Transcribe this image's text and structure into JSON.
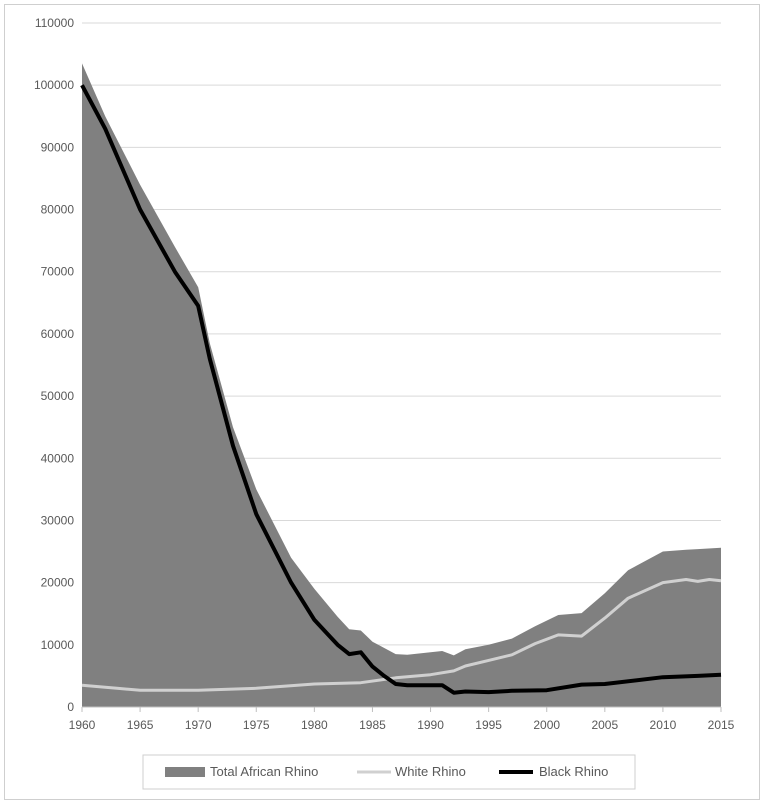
{
  "chart_data": {
    "type": "area",
    "title": "",
    "xlabel": "",
    "ylabel": "",
    "xlim": [
      1960,
      2015
    ],
    "ylim": [
      0,
      110000
    ],
    "x_ticks": [
      1960,
      1965,
      1970,
      1975,
      1980,
      1985,
      1990,
      1995,
      2000,
      2005,
      2010,
      2015
    ],
    "y_ticks": [
      0,
      10000,
      20000,
      30000,
      40000,
      50000,
      60000,
      70000,
      80000,
      90000,
      100000,
      110000
    ],
    "grid": "horizontal",
    "legend_position": "bottom",
    "series": [
      {
        "name": "Total African Rhino",
        "style": "area",
        "color": "#808080",
        "x": [
          1960,
          1962,
          1965,
          1968,
          1970,
          1971,
          1973,
          1975,
          1978,
          1980,
          1982,
          1983,
          1984,
          1985,
          1987,
          1988,
          1990,
          1991,
          1992,
          1993,
          1995,
          1997,
          1999,
          2001,
          2003,
          2005,
          2007,
          2010,
          2012,
          2013,
          2015
        ],
        "values": [
          103500,
          95000,
          84000,
          74000,
          67500,
          58500,
          45000,
          35000,
          24000,
          19000,
          14500,
          12500,
          12300,
          10500,
          8500,
          8400,
          8800,
          9000,
          8300,
          9300,
          10000,
          11000,
          13000,
          14800,
          15100,
          18300,
          22000,
          25000,
          25300,
          25400,
          25600
        ]
      },
      {
        "name": "White Rhino",
        "style": "line",
        "color": "#d0d0d0",
        "x": [
          1960,
          1963,
          1965,
          1970,
          1975,
          1980,
          1984,
          1987,
          1990,
          1992,
          1993,
          1995,
          1997,
          1999,
          2001,
          2003,
          2005,
          2007,
          2010,
          2012,
          2013,
          2014,
          2015
        ],
        "values": [
          3500,
          3000,
          2700,
          2700,
          3000,
          3700,
          3900,
          4700,
          5200,
          5800,
          6600,
          7500,
          8400,
          10200,
          11600,
          11400,
          14300,
          17500,
          20000,
          20500,
          20200,
          20500,
          20300
        ]
      },
      {
        "name": "Black Rhino",
        "style": "line",
        "color": "#000000",
        "x": [
          1960,
          1962,
          1965,
          1968,
          1970,
          1971,
          1973,
          1975,
          1978,
          1980,
          1982,
          1983,
          1984,
          1985,
          1986,
          1987,
          1988,
          1990,
          1991,
          1992,
          1993,
          1995,
          1997,
          2000,
          2003,
          2005,
          2010,
          2013,
          2015
        ],
        "values": [
          100000,
          93000,
          80000,
          70000,
          64500,
          56000,
          42000,
          31000,
          20000,
          14000,
          10000,
          8500,
          8800,
          6500,
          5000,
          3700,
          3500,
          3500,
          3500,
          2300,
          2500,
          2400,
          2600,
          2700,
          3600,
          3700,
          4800,
          5000,
          5200
        ]
      }
    ]
  }
}
